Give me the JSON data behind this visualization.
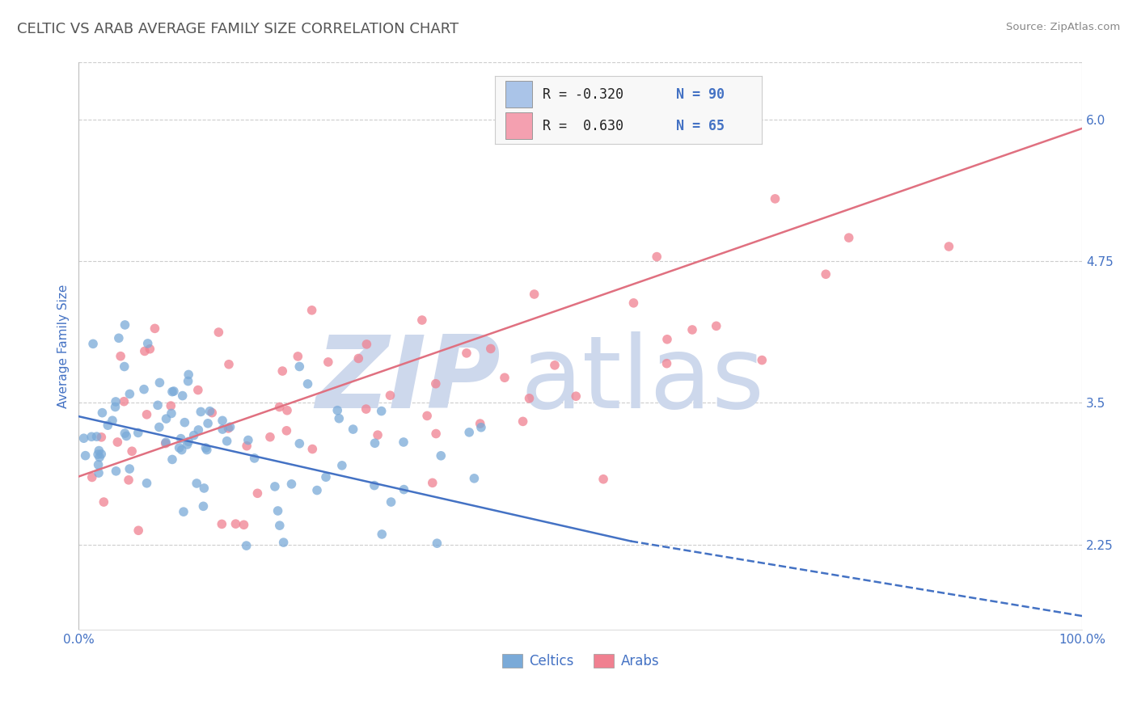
{
  "title": "CELTIC VS ARAB AVERAGE FAMILY SIZE CORRELATION CHART",
  "source_text": "Source: ZipAtlas.com",
  "ylabel": "Average Family Size",
  "xlim": [
    0.0,
    1.0
  ],
  "ylim": [
    1.5,
    6.5
  ],
  "yticks": [
    2.25,
    3.5,
    4.75,
    6.0
  ],
  "xtick_labels": [
    "0.0%",
    "100.0%"
  ],
  "xtick_positions": [
    0.0,
    1.0
  ],
  "axis_color": "#4472c4",
  "grid_color": "#c8c8c8",
  "background_color": "#ffffff",
  "watermark_zip": "ZIP",
  "watermark_atlas": "atlas",
  "watermark_color": "#cdd8ec",
  "legend_r1": "R = -0.320",
  "legend_n1": "N = 90",
  "legend_r2": "R =  0.630",
  "legend_n2": "N = 65",
  "legend_color1": "#aac4e8",
  "legend_color2": "#f4a0b0",
  "scatter_color1": "#7aaad8",
  "scatter_color2": "#f08090",
  "line_color1": "#4472c4",
  "line_color2": "#e07080",
  "label1": "Celtics",
  "label2": "Arabs",
  "R1": -0.32,
  "N1": 90,
  "R2": 0.63,
  "N2": 65,
  "title_color": "#555555",
  "title_fontsize": 13,
  "tick_color": "#4472c4",
  "source_color": "#888888",
  "tick_fontsize": 11,
  "ylabel_fontsize": 11
}
